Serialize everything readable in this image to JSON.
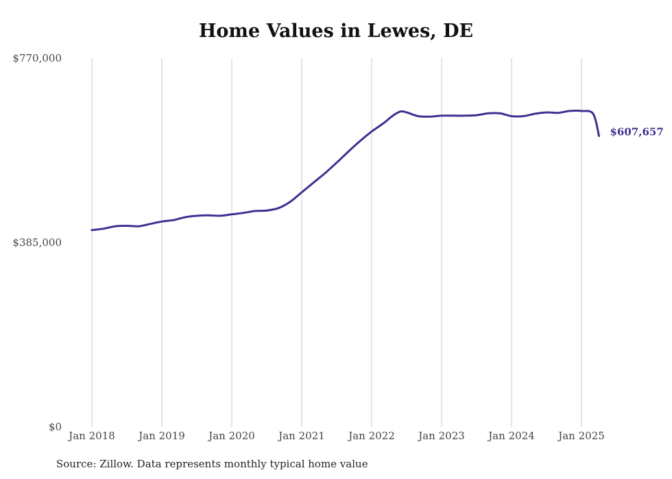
{
  "chart_data": {
    "type": "line",
    "title": "Home Values in Lewes, DE",
    "source": "Source: Zillow. Data represents monthly typical home value",
    "ylim": [
      0,
      770000
    ],
    "y_tick_labels": [
      "$770,000",
      "$385,000",
      "$0"
    ],
    "y_ticks": [
      770000,
      385000,
      0
    ],
    "x_tick_labels": [
      "Jan 2018",
      "Jan 2019",
      "Jan 2020",
      "Jan 2021",
      "Jan 2022",
      "Jan 2023",
      "Jan 2024",
      "Jan 2025"
    ],
    "x_ticks": [
      2018,
      2019,
      2020,
      2021,
      2022,
      2023,
      2024,
      2025
    ],
    "xlim": [
      2018,
      2025.25
    ],
    "grid": "vertical",
    "line_color": "#3d3191",
    "end_label": "$607,657",
    "series": [
      {
        "x": [
          2018.0,
          2018.167,
          2018.333,
          2018.5,
          2018.667,
          2018.833,
          2019.0,
          2019.167,
          2019.333,
          2019.5,
          2019.667,
          2019.833,
          2020.0,
          2020.167,
          2020.333,
          2020.5,
          2020.667,
          2020.833,
          2021.0,
          2021.167,
          2021.333,
          2021.5,
          2021.667,
          2021.833,
          2022.0,
          2022.167,
          2022.25,
          2022.333,
          2022.417,
          2022.5,
          2022.667,
          2022.833,
          2023.0,
          2023.167,
          2023.333,
          2023.5,
          2023.667,
          2023.833,
          2024.0,
          2024.167,
          2024.333,
          2024.5,
          2024.667,
          2024.833,
          2025.0,
          2025.167,
          2025.25
        ],
        "values": [
          411000,
          414000,
          419000,
          420000,
          419000,
          424000,
          429000,
          432000,
          438000,
          441000,
          442000,
          441000,
          444000,
          447000,
          451000,
          452000,
          457000,
          470000,
          490000,
          510000,
          530000,
          552000,
          575000,
          597000,
          617000,
          634000,
          644000,
          653000,
          659000,
          657000,
          649000,
          648000,
          650000,
          650000,
          650000,
          651000,
          655000,
          655000,
          649000,
          649000,
          654000,
          657000,
          656000,
          660000,
          660000,
          654000,
          607657
        ]
      }
    ]
  }
}
